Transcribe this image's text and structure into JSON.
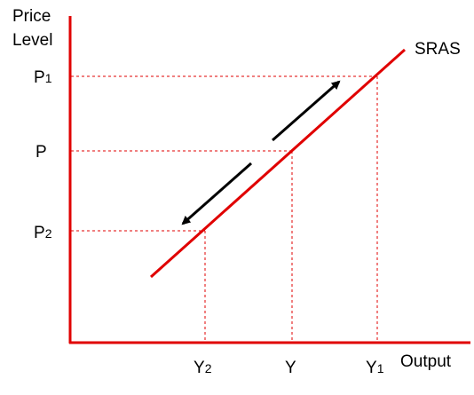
{
  "diagram": {
    "y_axis_title_line1": "Price",
    "y_axis_title_line2": "Level",
    "x_axis_title": "Output",
    "curve_label": "SRAS",
    "price_labels": {
      "p1_main": "P",
      "p1_sub": "1",
      "p": "P",
      "p2_main": "P",
      "p2_sub": "2"
    },
    "output_labels": {
      "y2_main": "Y",
      "y2_sub": "2",
      "y": "Y",
      "y1_main": "Y",
      "y1_sub": "1"
    },
    "colors": {
      "axis": "#e00000",
      "curve": "#e00000",
      "guide_lines": "#e00000",
      "arrows": "#000000",
      "text": "#000000"
    }
  }
}
